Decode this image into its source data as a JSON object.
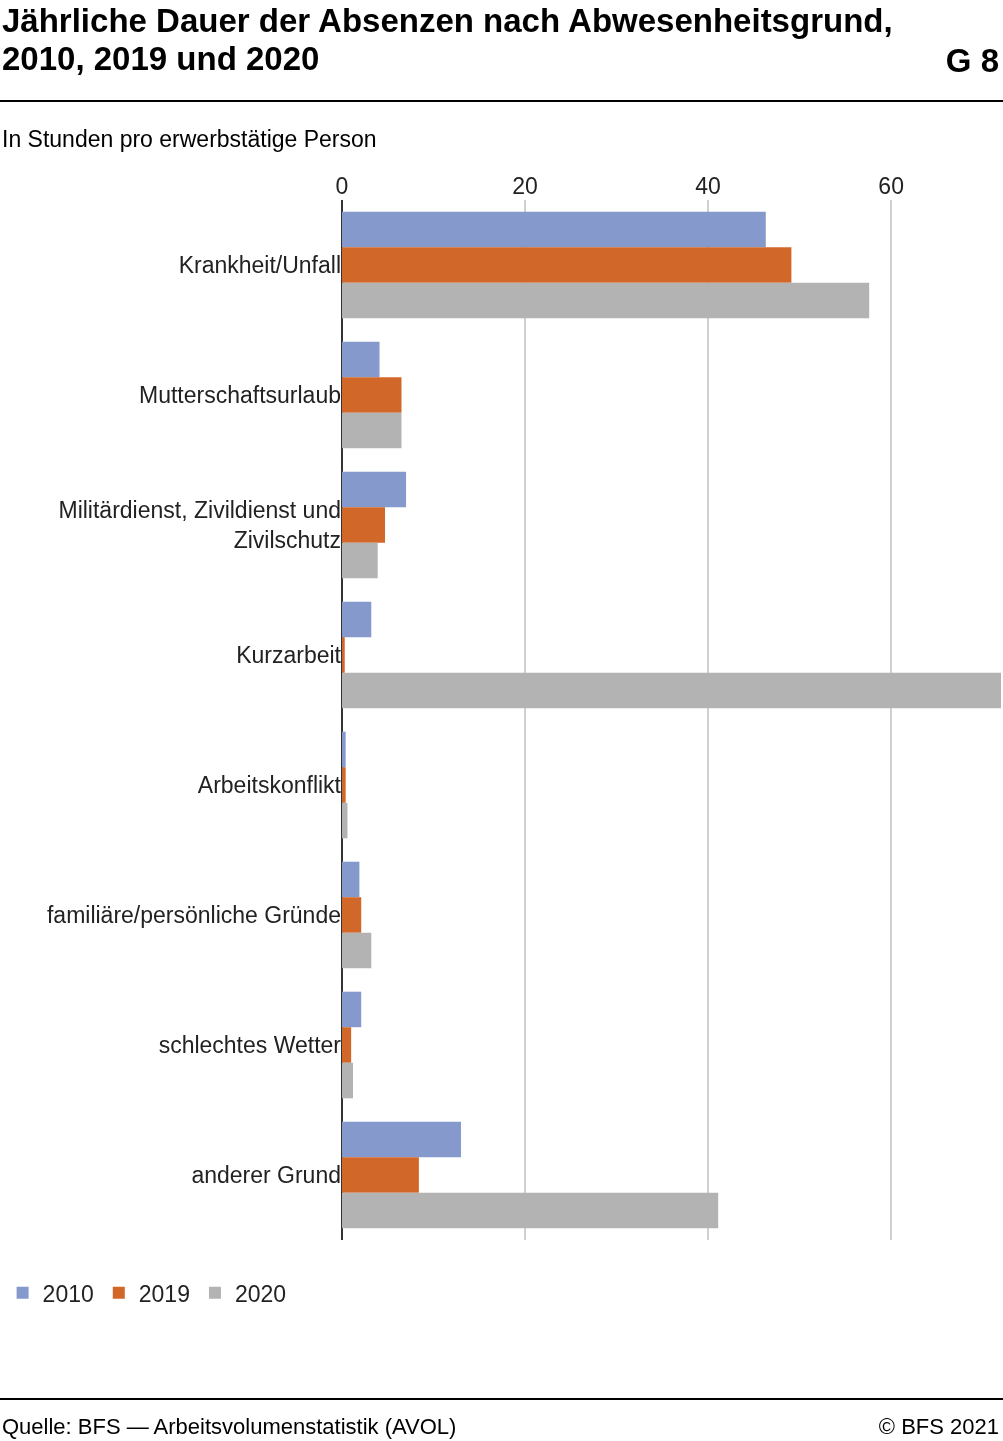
{
  "chart_data": {
    "type": "bar",
    "orientation": "horizontal",
    "title": "Jährliche Dauer der Absenzen nach Abwesenheitsgrund, 2010, 2019 und 2020",
    "xlabel": "In Stunden pro erwerbstätige Person",
    "categories": [
      "Krankheit/Unfall",
      "Mutterschaftsurlaub",
      "Militärdienst, Zivildienst und Zivilschutz",
      "Kurzarbeit",
      "Arbeitskonflikt",
      "familiäre/persönliche Gründe",
      "schlechtes Wetter",
      "anderer Grund"
    ],
    "series": [
      {
        "name": "2010",
        "color": "#8599cc",
        "values": [
          46.3,
          4.1,
          7.0,
          3.2,
          0.4,
          1.9,
          2.1,
          13.0
        ]
      },
      {
        "name": "2019",
        "color": "#d2672a",
        "values": [
          49.1,
          6.5,
          4.7,
          0.3,
          0.4,
          2.1,
          1.0,
          8.4
        ]
      },
      {
        "name": "2020",
        "color": "#b3b3b3",
        "values": [
          57.6,
          6.5,
          3.9,
          72,
          0.6,
          3.2,
          1.2,
          41.1
        ]
      }
    ],
    "xlim": [
      0,
      72
    ],
    "xticks": [
      0,
      20,
      40,
      60
    ],
    "grid": "x",
    "legend": "bottom left",
    "annotations": [
      "G 8",
      "Quelle: BFS — Arbeitsvolumenstatistik (AVOL)",
      "© BFS 2021"
    ]
  }
}
